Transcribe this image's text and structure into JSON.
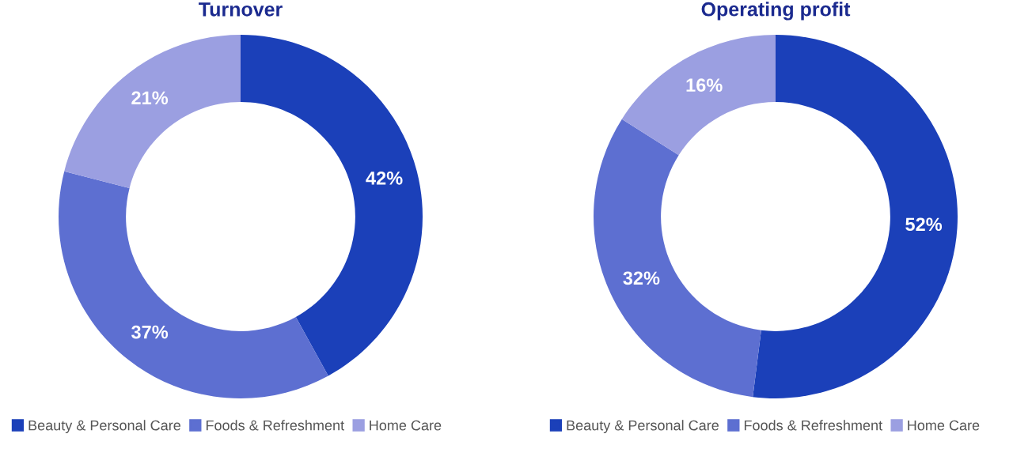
{
  "chart_data": [
    {
      "type": "donut",
      "title": "Turnover",
      "categories": [
        "Beauty & Personal Care",
        "Foods & Refreshment",
        "Home Care"
      ],
      "values": [
        42,
        37,
        21
      ],
      "colors": [
        "#1b40b9",
        "#5d6fd1",
        "#9b9fe1"
      ],
      "value_labels": [
        "42%",
        "37%",
        "21%"
      ],
      "legend": "bottom"
    },
    {
      "type": "donut",
      "title": "Operating profit",
      "categories": [
        "Beauty & Personal Care",
        "Foods & Refreshment",
        "Home Care"
      ],
      "values": [
        52,
        32,
        16
      ],
      "colors": [
        "#1b40b9",
        "#5d6fd1",
        "#9b9fe1"
      ],
      "value_labels": [
        "52%",
        "32%",
        "16%"
      ],
      "legend": "bottom"
    }
  ]
}
